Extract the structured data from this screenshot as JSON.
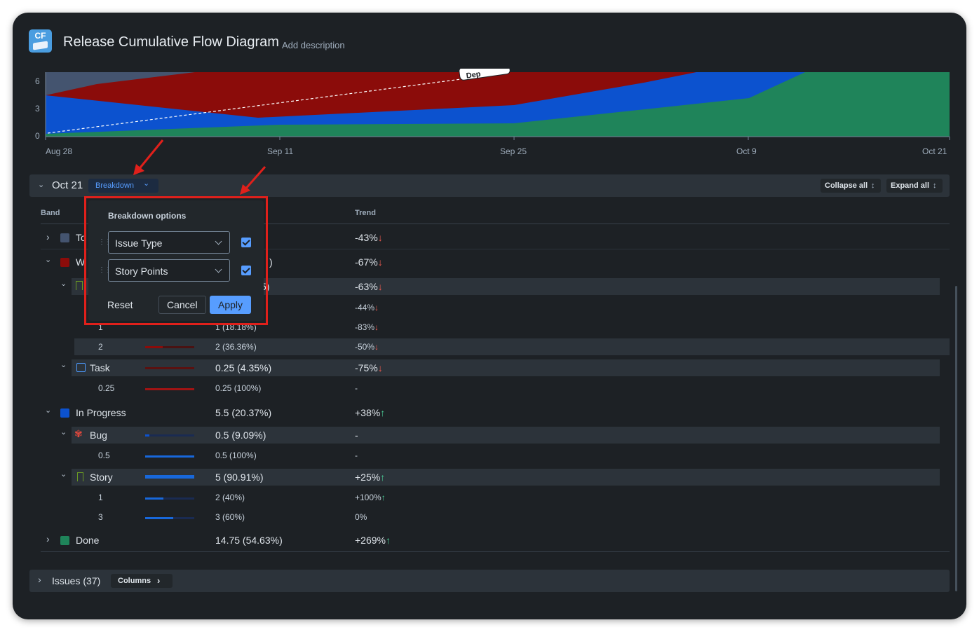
{
  "header": {
    "logo_text": "CF",
    "title": "Release Cumulative Flow Diagram",
    "add_description": "Add description"
  },
  "chart_data": {
    "type": "area",
    "x": [
      "Aug 28",
      "Sep 11",
      "Sep 25",
      "Oct 9",
      "Oct 21"
    ],
    "ylim": [
      0,
      7
    ],
    "y_ticks": [
      "6",
      "3",
      "0"
    ],
    "x_tick_labels": [
      "Aug 28",
      "Sep 11",
      "Sep 25",
      "Oct 9",
      "Oct 21"
    ],
    "colors": {
      "To Do": "#44546f",
      "Waiting": "#8b0c0a",
      "In Progress": "#0c52cf",
      "Done": "#1f845a"
    },
    "annotation": "Dep"
  },
  "section": {
    "date": "Oct 21",
    "breakdown_label": "Breakdown",
    "collapse_all": "Collapse all",
    "expand_all": "Expand all"
  },
  "table": {
    "head_band": "Band",
    "head_trend": "Trend",
    "rows": [
      {
        "label": "To",
        "value": "",
        "trend": "-43%",
        "dir": "down"
      },
      {
        "label": "W",
        "value": ")",
        "trend": "-67%",
        "dir": "down"
      },
      {
        "label": "",
        "value": "5)",
        "trend": "-63%",
        "dir": "down"
      },
      {
        "label": "",
        "value": "",
        "trend": "-44%",
        "dir": "down"
      },
      {
        "label": "1",
        "value": "1 (18.18%)",
        "trend": "-83%",
        "dir": "down"
      },
      {
        "label": "2",
        "value": "2 (36.36%)",
        "trend": "-50%",
        "dir": "down"
      },
      {
        "label": "Task",
        "value": "0.25 (4.35%)",
        "trend": "-75%",
        "dir": "down"
      },
      {
        "label": "0.25",
        "value": "0.25 (100%)",
        "trend": "-",
        "dir": "none"
      },
      {
        "label": "In Progress",
        "value": "5.5 (20.37%)",
        "trend": "+38%",
        "dir": "up"
      },
      {
        "label": "Bug",
        "value": "0.5 (9.09%)",
        "trend": "-",
        "dir": "none"
      },
      {
        "label": "0.5",
        "value": "0.5 (100%)",
        "trend": "-",
        "dir": "none"
      },
      {
        "label": "Story",
        "value": "5 (90.91%)",
        "trend": "+25%",
        "dir": "up"
      },
      {
        "label": "1",
        "value": "2 (40%)",
        "trend": "+100%",
        "dir": "up"
      },
      {
        "label": "3",
        "value": "3 (60%)",
        "trend": "0%",
        "dir": "none"
      },
      {
        "label": "Done",
        "value": "14.75 (54.63%)",
        "trend": "+269%",
        "dir": "up"
      }
    ]
  },
  "issues": {
    "label": "Issues (37)",
    "columns_label": "Columns"
  },
  "popup": {
    "title": "Breakdown options",
    "select1": "Issue Type",
    "select2": "Story Points",
    "reset": "Reset",
    "cancel": "Cancel",
    "apply": "Apply"
  },
  "glyphs": {
    "arrow_down": "↓",
    "arrow_up": "↑",
    "chevron_down": "⌄",
    "chevron_right": "›"
  }
}
